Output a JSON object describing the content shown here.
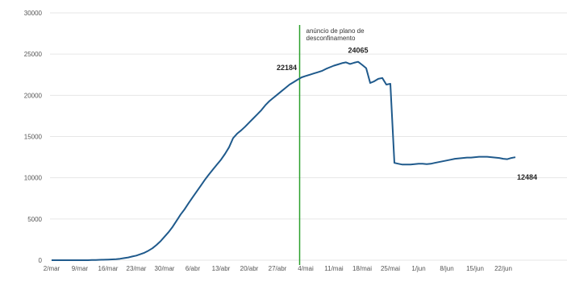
{
  "chart_data": {
    "type": "line",
    "title": "",
    "xlabel": "",
    "ylabel": "",
    "ylim": [
      0,
      30000
    ],
    "y_ticks": [
      0,
      5000,
      10000,
      15000,
      20000,
      25000,
      30000
    ],
    "x_tick_labels": [
      "2/mar",
      "9/mar",
      "16/mar",
      "23/mar",
      "30/mar",
      "6/abr",
      "13/abr",
      "20/abr",
      "27/abr",
      "4/mai",
      "11/mai",
      "18/mai",
      "25/mai",
      "1/jun",
      "8/jun",
      "15/jun",
      "22/jun"
    ],
    "grid": "horizontal",
    "colors": {
      "series": "#1f5a8c",
      "annotation_line": "#2ca02c",
      "grid": "#e6e6e6"
    },
    "series": [
      {
        "values": [
          0,
          0,
          0,
          0,
          0,
          0,
          0,
          0,
          0,
          0,
          20,
          30,
          50,
          60,
          80,
          100,
          130,
          180,
          250,
          330,
          450,
          560,
          720,
          900,
          1150,
          1450,
          1850,
          2300,
          2850,
          3400,
          4050,
          4800,
          5550,
          6200,
          6950,
          7650,
          8350,
          9050,
          9750,
          10400,
          11000,
          11600,
          12200,
          12900,
          13700,
          14800,
          15350,
          15750,
          16200,
          16700,
          17200,
          17700,
          18200,
          18800,
          19300,
          19700,
          20100,
          20500,
          20900,
          21300,
          21600,
          21900,
          22184,
          22350,
          22500,
          22650,
          22800,
          22950,
          23200,
          23400,
          23600,
          23750,
          23900,
          24000,
          23800,
          23950,
          24065,
          23700,
          23300,
          21500,
          21700,
          22000,
          22100,
          21300,
          21400,
          11800,
          11700,
          11600,
          11600,
          11600,
          11650,
          11700,
          11700,
          11650,
          11700,
          11800,
          11900,
          12000,
          12100,
          12200,
          12300,
          12350,
          12400,
          12450,
          12450,
          12500,
          12550,
          12550,
          12550,
          12500,
          12450,
          12400,
          12300,
          12250,
          12400,
          12484
        ]
      }
    ],
    "data_labels": [
      {
        "index": 62,
        "text": "22184"
      },
      {
        "index": 76,
        "text": "24065"
      },
      {
        "index": 115,
        "text": "12484"
      }
    ],
    "annotations": [
      {
        "x_index": 61.5,
        "lines": [
          "anúncio de plano de",
          "desconfinamento"
        ]
      }
    ]
  }
}
